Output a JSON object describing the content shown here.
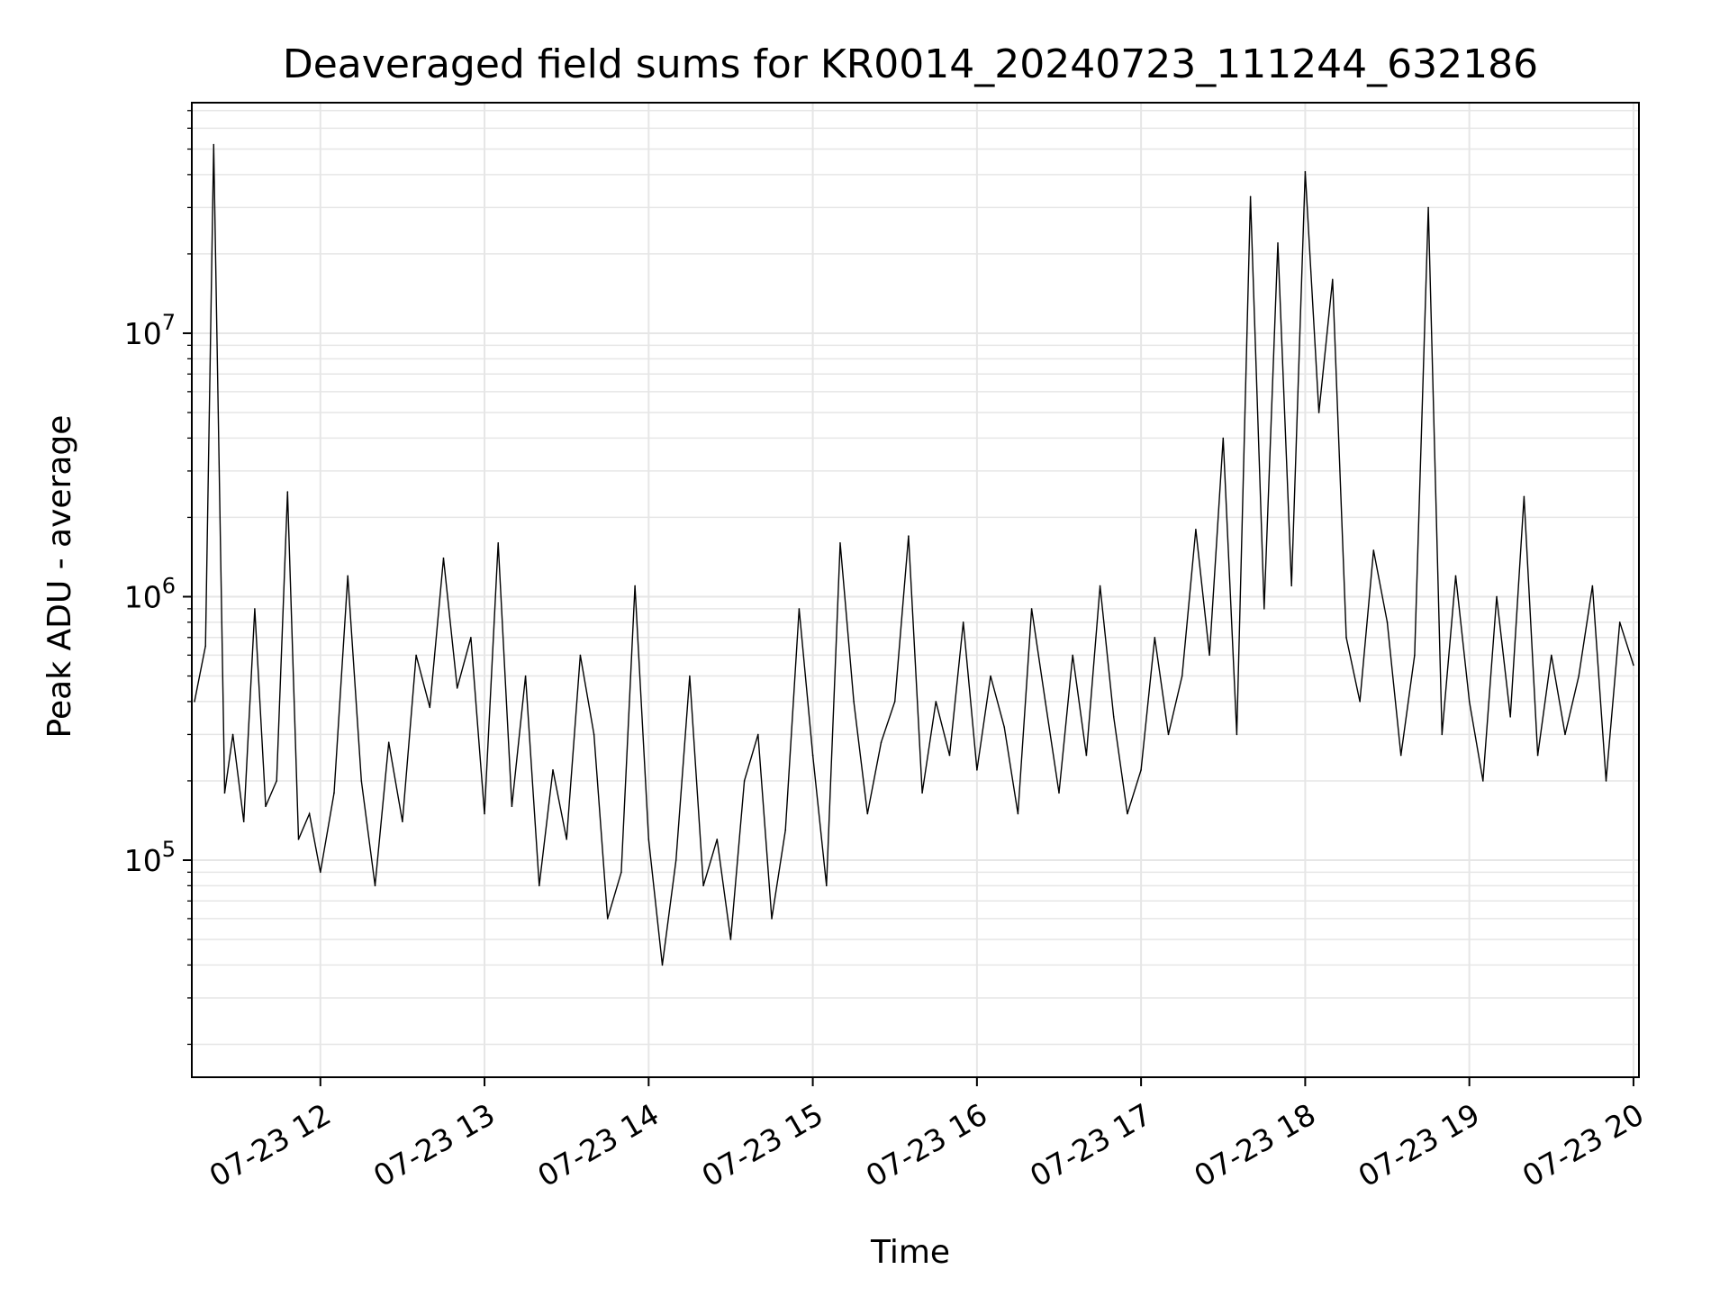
{
  "chart_data": {
    "type": "line",
    "title": "Deaveraged field sums for KR0014_20240723_111244_632186",
    "xlabel": "Time",
    "ylabel": "Peak ADU - average",
    "yscale": "log",
    "ylim": [
      15000,
      75000000
    ],
    "xlim": [
      "2024-07-23 11:13",
      "2024-07-23 20:02"
    ],
    "grid": true,
    "line_color": "#000000",
    "grid_color": "#e6e6e6",
    "x_ticks": [
      {
        "value": "2024-07-23 12:00",
        "label": "07-23 12"
      },
      {
        "value": "2024-07-23 13:00",
        "label": "07-23 13"
      },
      {
        "value": "2024-07-23 14:00",
        "label": "07-23 14"
      },
      {
        "value": "2024-07-23 15:00",
        "label": "07-23 15"
      },
      {
        "value": "2024-07-23 16:00",
        "label": "07-23 16"
      },
      {
        "value": "2024-07-23 17:00",
        "label": "07-23 17"
      },
      {
        "value": "2024-07-23 18:00",
        "label": "07-23 18"
      },
      {
        "value": "2024-07-23 19:00",
        "label": "07-23 19"
      },
      {
        "value": "2024-07-23 20:00",
        "label": "07-23 20"
      }
    ],
    "y_ticks": [
      {
        "value": 100000,
        "base": "10",
        "exp": "5"
      },
      {
        "value": 1000000,
        "base": "10",
        "exp": "6"
      },
      {
        "value": 10000000,
        "base": "10",
        "exp": "7"
      }
    ],
    "series": [
      {
        "x": [
          "2024-07-23 11:14",
          "2024-07-23 11:18",
          "2024-07-23 11:21",
          "2024-07-23 11:25",
          "2024-07-23 11:28",
          "2024-07-23 11:32",
          "2024-07-23 11:36",
          "2024-07-23 11:40",
          "2024-07-23 11:44",
          "2024-07-23 11:48",
          "2024-07-23 11:52",
          "2024-07-23 11:56",
          "2024-07-23 12:00",
          "2024-07-23 12:05",
          "2024-07-23 12:10",
          "2024-07-23 12:15",
          "2024-07-23 12:20",
          "2024-07-23 12:25",
          "2024-07-23 12:30",
          "2024-07-23 12:35",
          "2024-07-23 12:40",
          "2024-07-23 12:45",
          "2024-07-23 12:50",
          "2024-07-23 12:55",
          "2024-07-23 13:00",
          "2024-07-23 13:05",
          "2024-07-23 13:10",
          "2024-07-23 13:15",
          "2024-07-23 13:20",
          "2024-07-23 13:25",
          "2024-07-23 13:30",
          "2024-07-23 13:35",
          "2024-07-23 13:40",
          "2024-07-23 13:45",
          "2024-07-23 13:50",
          "2024-07-23 13:55",
          "2024-07-23 14:00",
          "2024-07-23 14:05",
          "2024-07-23 14:10",
          "2024-07-23 14:15",
          "2024-07-23 14:20",
          "2024-07-23 14:25",
          "2024-07-23 14:30",
          "2024-07-23 14:35",
          "2024-07-23 14:40",
          "2024-07-23 14:45",
          "2024-07-23 14:50",
          "2024-07-23 14:55",
          "2024-07-23 15:00",
          "2024-07-23 15:05",
          "2024-07-23 15:10",
          "2024-07-23 15:15",
          "2024-07-23 15:20",
          "2024-07-23 15:25",
          "2024-07-23 15:30",
          "2024-07-23 15:35",
          "2024-07-23 15:40",
          "2024-07-23 15:45",
          "2024-07-23 15:50",
          "2024-07-23 15:55",
          "2024-07-23 16:00",
          "2024-07-23 16:05",
          "2024-07-23 16:10",
          "2024-07-23 16:15",
          "2024-07-23 16:20",
          "2024-07-23 16:25",
          "2024-07-23 16:30",
          "2024-07-23 16:35",
          "2024-07-23 16:40",
          "2024-07-23 16:45",
          "2024-07-23 16:50",
          "2024-07-23 16:55",
          "2024-07-23 17:00",
          "2024-07-23 17:05",
          "2024-07-23 17:10",
          "2024-07-23 17:15",
          "2024-07-23 17:20",
          "2024-07-23 17:25",
          "2024-07-23 17:30",
          "2024-07-23 17:35",
          "2024-07-23 17:40",
          "2024-07-23 17:45",
          "2024-07-23 17:50",
          "2024-07-23 17:55",
          "2024-07-23 18:00",
          "2024-07-23 18:05",
          "2024-07-23 18:10",
          "2024-07-23 18:15",
          "2024-07-23 18:20",
          "2024-07-23 18:25",
          "2024-07-23 18:30",
          "2024-07-23 18:35",
          "2024-07-23 18:40",
          "2024-07-23 18:45",
          "2024-07-23 18:50",
          "2024-07-23 18:55",
          "2024-07-23 19:00",
          "2024-07-23 19:05",
          "2024-07-23 19:10",
          "2024-07-23 19:15",
          "2024-07-23 19:20",
          "2024-07-23 19:25",
          "2024-07-23 19:30",
          "2024-07-23 19:35",
          "2024-07-23 19:40",
          "2024-07-23 19:45",
          "2024-07-23 19:50",
          "2024-07-23 19:55",
          "2024-07-23 20:00"
        ],
        "values": [
          400000,
          650000,
          52000000,
          180000,
          300000,
          140000,
          900000,
          160000,
          200000,
          2500000,
          120000,
          150000,
          90000,
          180000,
          1200000,
          200000,
          80000,
          280000,
          140000,
          600000,
          380000,
          1400000,
          450000,
          700000,
          150000,
          1600000,
          160000,
          500000,
          80000,
          220000,
          120000,
          600000,
          300000,
          60000,
          90000,
          1100000,
          120000,
          40000,
          100000,
          500000,
          80000,
          120000,
          50000,
          200000,
          300000,
          60000,
          130000,
          900000,
          250000,
          80000,
          1600000,
          400000,
          150000,
          280000,
          400000,
          1700000,
          180000,
          400000,
          250000,
          800000,
          220000,
          500000,
          320000,
          150000,
          900000,
          400000,
          180000,
          600000,
          250000,
          1100000,
          350000,
          150000,
          220000,
          700000,
          300000,
          500000,
          1800000,
          600000,
          4000000,
          300000,
          33000000,
          900000,
          22000000,
          1100000,
          41000000,
          5000000,
          16000000,
          700000,
          400000,
          1500000,
          800000,
          250000,
          600000,
          30000000,
          300000,
          1200000,
          400000,
          200000,
          1000000,
          350000,
          2400000,
          250000,
          600000,
          300000,
          500000,
          1100000,
          200000,
          800000,
          550000
        ]
      }
    ]
  }
}
